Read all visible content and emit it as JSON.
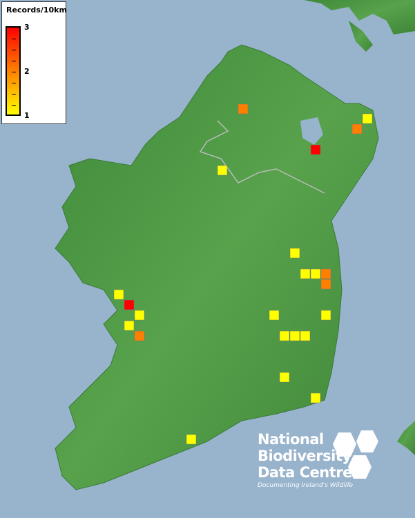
{
  "legend": {
    "title": "Records/10km",
    "max_label": "3",
    "mid_label": "2",
    "min_label": "1",
    "color_scale": [
      "#ffff00",
      "#ff8000",
      "#ff0000"
    ]
  },
  "map": {
    "sea_color": "#98b3cc",
    "land_color": "#4e9b45",
    "record_counts": [
      2,
      1,
      2,
      3,
      1,
      1,
      1,
      1,
      2,
      2,
      1,
      3,
      1,
      1,
      2,
      1,
      1,
      1,
      1,
      1,
      1,
      1,
      1
    ]
  },
  "logo": {
    "line1": "National",
    "line2": "Biodiversity",
    "line3": "Data Centre",
    "tagline": "Documenting Ireland's Wildlife"
  }
}
